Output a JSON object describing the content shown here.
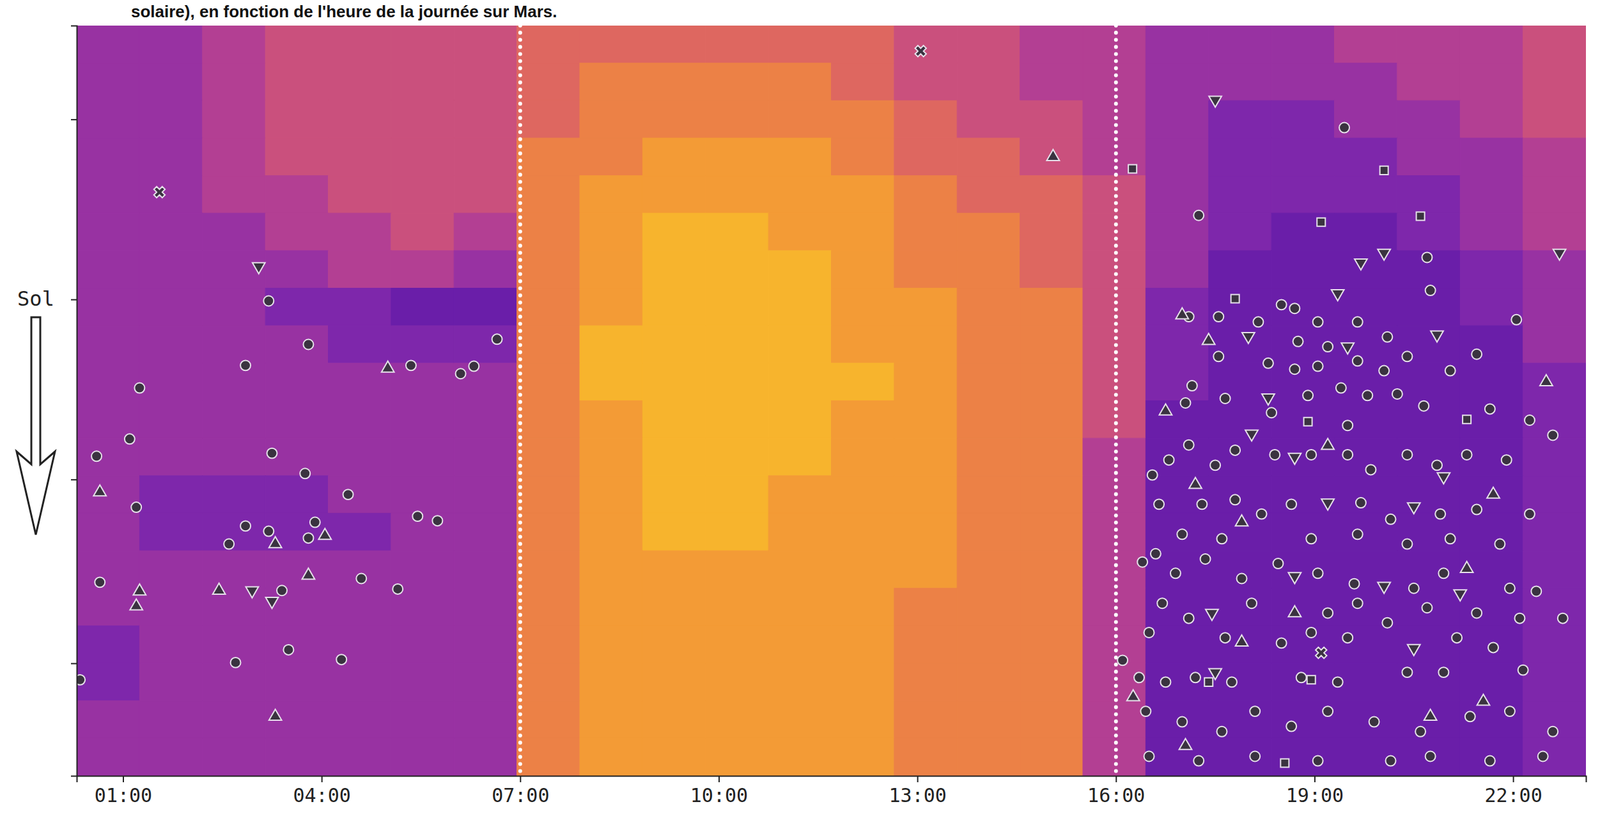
{
  "chart_data": {
    "type": "heatmap",
    "title": "solaire), en fonction de l'heure de la journée sur Mars.",
    "y_label": "Sol",
    "xlim": [
      0.3,
      23.1
    ],
    "xticks": [
      {
        "value": 1,
        "label": "01:00"
      },
      {
        "value": 4,
        "label": "04:00"
      },
      {
        "value": 7,
        "label": "07:00"
      },
      {
        "value": 10,
        "label": "10:00"
      },
      {
        "value": 13,
        "label": "13:00"
      },
      {
        "value": 16,
        "label": "16:00"
      },
      {
        "value": 19,
        "label": "19:00"
      },
      {
        "value": 22,
        "label": "22:00"
      }
    ],
    "ylim": [
      0,
      100
    ],
    "yticks": [
      12.5,
      36.5,
      60.5,
      85
    ],
    "tick_labels": "x",
    "zlim": [
      0,
      10
    ],
    "vlines": [
      7,
      16
    ],
    "x_bins": [
      0.3,
      1.25,
      2.2,
      3.15,
      4.1,
      5.05,
      6.0,
      6.95,
      7.9,
      8.85,
      9.8,
      10.75,
      11.7,
      12.65,
      13.6,
      14.55,
      15.5,
      16.45,
      17.4,
      18.35,
      19.3,
      20.25,
      21.2,
      22.15,
      23.1
    ],
    "y_bins": [
      0,
      5,
      10,
      15,
      20,
      25,
      30,
      35,
      40,
      45,
      50,
      55,
      60,
      65,
      70,
      75,
      80,
      85,
      90,
      95,
      100
    ],
    "cells": [
      [
        3,
        3,
        4,
        5,
        5,
        5,
        5,
        6,
        6,
        6,
        6,
        6,
        6,
        5,
        5,
        4,
        4,
        3,
        3,
        3,
        4,
        4,
        4,
        5
      ],
      [
        3,
        3,
        4,
        5,
        5,
        5,
        5,
        6,
        7,
        7,
        7,
        7,
        6,
        5,
        5,
        4,
        4,
        3,
        3,
        3,
        3,
        4,
        4,
        5
      ],
      [
        3,
        3,
        4,
        5,
        5,
        5,
        5,
        6,
        7,
        7,
        7,
        7,
        7,
        6,
        5,
        5,
        4,
        3,
        2,
        2,
        3,
        3,
        4,
        5
      ],
      [
        3,
        3,
        4,
        5,
        5,
        5,
        5,
        7,
        7,
        8,
        8,
        8,
        7,
        6,
        6,
        5,
        4,
        3,
        2,
        2,
        2,
        3,
        3,
        4
      ],
      [
        3,
        3,
        4,
        4,
        5,
        5,
        5,
        7,
        8,
        8,
        8,
        8,
        8,
        7,
        6,
        6,
        5,
        3,
        2,
        2,
        2,
        2,
        3,
        4
      ],
      [
        3,
        3,
        3,
        4,
        4,
        5,
        4,
        7,
        8,
        9,
        9,
        8,
        8,
        7,
        7,
        6,
        5,
        3,
        2,
        1,
        1,
        2,
        3,
        4
      ],
      [
        3,
        3,
        3,
        3,
        4,
        4,
        3,
        7,
        8,
        9,
        9,
        9,
        8,
        7,
        7,
        6,
        5,
        3,
        1,
        1,
        1,
        1,
        2,
        3
      ],
      [
        3,
        3,
        3,
        2,
        2,
        1,
        1,
        7,
        8,
        9,
        9,
        9,
        8,
        8,
        7,
        7,
        5,
        2,
        1,
        1,
        1,
        1,
        2,
        3
      ],
      [
        3,
        3,
        3,
        3,
        2,
        2,
        2,
        7,
        9,
        9,
        9,
        9,
        8,
        8,
        7,
        7,
        5,
        2,
        1,
        1,
        1,
        1,
        1,
        3
      ],
      [
        3,
        3,
        3,
        3,
        3,
        3,
        3,
        7,
        9,
        9,
        9,
        9,
        9,
        8,
        7,
        7,
        5,
        2,
        1,
        1,
        1,
        1,
        1,
        2
      ],
      [
        3,
        3,
        3,
        3,
        3,
        3,
        3,
        7,
        8,
        9,
        9,
        9,
        8,
        8,
        7,
        7,
        5,
        1,
        1,
        1,
        1,
        1,
        1,
        2
      ],
      [
        3,
        3,
        3,
        3,
        3,
        3,
        3,
        7,
        8,
        9,
        9,
        9,
        8,
        8,
        7,
        7,
        4,
        1,
        1,
        1,
        1,
        1,
        1,
        2
      ],
      [
        3,
        2,
        2,
        2,
        3,
        3,
        3,
        7,
        8,
        9,
        9,
        8,
        8,
        8,
        7,
        7,
        4,
        1,
        1,
        1,
        1,
        1,
        1,
        2
      ],
      [
        3,
        2,
        2,
        2,
        2,
        3,
        3,
        7,
        8,
        9,
        9,
        8,
        8,
        8,
        7,
        7,
        4,
        1,
        1,
        1,
        1,
        1,
        1,
        2
      ],
      [
        3,
        3,
        3,
        3,
        3,
        3,
        3,
        7,
        8,
        8,
        8,
        8,
        8,
        8,
        7,
        7,
        4,
        1,
        1,
        1,
        1,
        1,
        1,
        2
      ],
      [
        3,
        3,
        3,
        3,
        3,
        3,
        3,
        7,
        8,
        8,
        8,
        8,
        8,
        7,
        7,
        7,
        4,
        1,
        1,
        1,
        1,
        1,
        1,
        2
      ],
      [
        2,
        3,
        3,
        3,
        3,
        3,
        3,
        7,
        8,
        8,
        8,
        8,
        8,
        7,
        7,
        7,
        4,
        1,
        1,
        1,
        1,
        1,
        1,
        2
      ],
      [
        2,
        3,
        3,
        3,
        3,
        3,
        3,
        7,
        8,
        8,
        8,
        8,
        8,
        7,
        7,
        7,
        4,
        1,
        1,
        1,
        1,
        1,
        1,
        2
      ],
      [
        3,
        3,
        3,
        3,
        3,
        3,
        3,
        7,
        8,
        8,
        8,
        8,
        8,
        7,
        7,
        7,
        4,
        1,
        1,
        1,
        1,
        1,
        1,
        2
      ],
      [
        3,
        3,
        3,
        3,
        3,
        3,
        3,
        7,
        8,
        8,
        8,
        8,
        8,
        7,
        7,
        7,
        4,
        1,
        1,
        1,
        1,
        1,
        1,
        2
      ]
    ],
    "series": [
      {
        "type": "scatter",
        "marker": "circle",
        "x": [
          6.65,
          6.3,
          5.35,
          3.8,
          2.85,
          3.2,
          1.25,
          0.6,
          1.1,
          1.2,
          0.65,
          0.35,
          3.25,
          3.75,
          3.9,
          3.8,
          2.85,
          3.2,
          2.6,
          4.4,
          5.45,
          5.75,
          4.6,
          5.15,
          3.4,
          3.5,
          2.7,
          4.3,
          6.1,
          17.25,
          19.45,
          20.75,
          22.05,
          20.7,
          17.1,
          17.55,
          18.15,
          18.5,
          18.7,
          19.05,
          19.65,
          20.1,
          18.75,
          19.2,
          17.55,
          18.3,
          18.7,
          19.05,
          19.65,
          20.05,
          21.05,
          21.45,
          20.4,
          17.15,
          17.65,
          17.05,
          18.9,
          19.4,
          19.8,
          20.25,
          20.65,
          21.65,
          22.25,
          18.35,
          19.5,
          16.55,
          16.8,
          17.1,
          17.5,
          17.8,
          18.4,
          18.95,
          19.5,
          19.85,
          20.4,
          20.85,
          21.3,
          21.9,
          22.6,
          16.65,
          17.3,
          17.8,
          18.2,
          18.65,
          19.7,
          20.15,
          20.9,
          21.45,
          22.25,
          17.0,
          17.6,
          18.95,
          19.65,
          20.4,
          21.05,
          21.8,
          16.4,
          16.6,
          16.9,
          17.35,
          17.9,
          18.45,
          19.05,
          19.6,
          20.5,
          20.95,
          21.95,
          22.35,
          16.7,
          17.1,
          18.05,
          19.2,
          19.65,
          20.1,
          20.7,
          21.45,
          22.1,
          22.75,
          16.5,
          17.65,
          18.5,
          18.95,
          19.5,
          21.15,
          21.7,
          16.35,
          16.75,
          17.2,
          17.75,
          18.8,
          19.35,
          20.4,
          20.95,
          22.15,
          16.45,
          17.0,
          17.6,
          18.1,
          18.65,
          19.2,
          19.9,
          20.6,
          21.35,
          21.95,
          22.6,
          16.5,
          17.25,
          18.1,
          19.05,
          20.15,
          20.75,
          21.65,
          22.45,
          16.1
        ],
        "values": [
          41.8,
          45.4,
          45.3,
          42.5,
          45.3,
          36.7,
          48.3,
          57.4,
          55.1,
          64.2,
          74.2,
          87.2,
          57,
          59.7,
          66.2,
          68.3,
          66.7,
          67.4,
          69.1,
          62.5,
          65.4,
          66,
          73.7,
          75.1,
          75.3,
          83.2,
          84.9,
          84.5,
          46.4,
          25.3,
          13.6,
          35.3,
          39.2,
          30.9,
          38.8,
          38.8,
          39.5,
          37.2,
          37.7,
          39.5,
          39.5,
          41.5,
          42.1,
          42.8,
          44.1,
          45,
          45.8,
          45.4,
          44.7,
          46,
          46,
          43.8,
          44.1,
          48,
          49.7,
          50.3,
          49.3,
          48.3,
          49.3,
          49.1,
          50.7,
          51.1,
          52.6,
          51.6,
          53.3,
          59.9,
          57.9,
          55.9,
          58.6,
          56.6,
          57.2,
          57.2,
          57.2,
          59.2,
          57.2,
          58.6,
          57.2,
          57.9,
          54.6,
          63.8,
          63.8,
          63.2,
          65.1,
          63.8,
          63.6,
          65.8,
          65.1,
          64.5,
          65.1,
          67.8,
          68.4,
          68.4,
          67.8,
          69.1,
          68.4,
          69.1,
          71.5,
          70.4,
          73,
          71.1,
          73.7,
          71.7,
          73,
          74.4,
          75,
          73,
          75,
          75.4,
          77,
          79,
          77,
          78.3,
          77,
          79.6,
          77.6,
          78.3,
          79,
          79,
          80.9,
          81.6,
          82.3,
          80.9,
          81.6,
          81.6,
          82.9,
          86.9,
          87.5,
          86.9,
          87.5,
          86.9,
          87.5,
          86.2,
          86.2,
          85.9,
          91.4,
          92.8,
          94.1,
          91.4,
          93.4,
          91.4,
          92.8,
          94.1,
          92.1,
          91.4,
          94.1,
          97.4,
          98,
          97.4,
          98,
          98,
          97.4,
          98,
          97.4,
          84.6
        ]
      },
      {
        "type": "scatter",
        "marker": "triangle-up",
        "x": [
          0.65,
          3.3,
          3.3,
          5.0,
          4.05,
          1.25,
          2.45,
          3.8,
          1.2,
          15.05,
          17.0,
          16.75,
          17.4,
          17.2,
          17.9,
          18.7,
          22.5,
          21.7,
          21.55,
          16.26,
          17.05,
          17.9,
          20.75,
          21.3,
          19.2
        ],
        "values": [
          62.2,
          69.1,
          92.1,
          45.7,
          68,
          75.4,
          75.3,
          73.3,
          77.4,
          17.5,
          38.6,
          51.4,
          42,
          61.2,
          66.2,
          78.3,
          47.5,
          62.5,
          90.1,
          89.5,
          96,
          82.2,
          92.1,
          72.4,
          56
        ]
      },
      {
        "type": "scatter",
        "marker": "triangle-down",
        "x": [
          3.05,
          2.95,
          3.25,
          17.5,
          22.7,
          19.7,
          20.05,
          18.0,
          19.35,
          19.5,
          20.85,
          18.3,
          18.7,
          19.2,
          20.95,
          18.7,
          20.05,
          21.2,
          17.45,
          20.5,
          17.5,
          18.05,
          20.5
        ],
        "values": [
          32.1,
          75.3,
          76.7,
          9.9,
          30.3,
          31.6,
          30.3,
          41.4,
          35.7,
          42.8,
          41.2,
          49.6,
          57.5,
          63.6,
          60.1,
          73.4,
          74.7,
          75.7,
          78.3,
          83,
          86.2,
          54.4,
          64.1
        ]
      },
      {
        "type": "scatter",
        "marker": "square",
        "x": [
          16.25,
          20.05,
          19.1,
          20.6,
          17.8,
          18.9,
          21.3,
          17.4,
          18.55,
          18.95
        ],
        "values": [
          19.1,
          19.3,
          26.2,
          25.4,
          36.4,
          52.8,
          52.5,
          87.5,
          98.3,
          87.2
        ]
      },
      {
        "type": "scatter",
        "marker": "x",
        "x": [
          1.55,
          13.05,
          19.1
        ],
        "values": [
          22.2,
          3.4,
          83.6
        ]
      }
    ]
  }
}
